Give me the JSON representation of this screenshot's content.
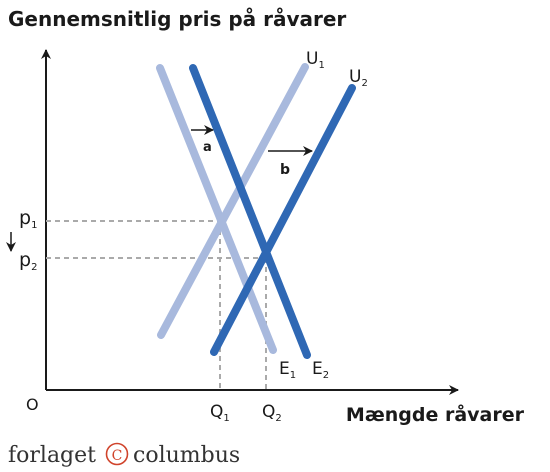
{
  "title": "Gennemsnitlig pris på råvarer",
  "xaxis_label": "Mængde råvarer",
  "origin_label": "O",
  "curves": {
    "u1": {
      "letter": "U",
      "sub": "1"
    },
    "u2": {
      "letter": "U",
      "sub": "2"
    },
    "e1": {
      "letter": "E",
      "sub": "1"
    },
    "e2": {
      "letter": "E",
      "sub": "2"
    }
  },
  "price_labels": {
    "p1": {
      "letter": "p",
      "sub": "1"
    },
    "p2": {
      "letter": "p",
      "sub": "2"
    }
  },
  "quantity_labels": {
    "q1": {
      "letter": "Q",
      "sub": "1"
    },
    "q2": {
      "letter": "Q",
      "sub": "2"
    }
  },
  "shift_labels": {
    "a": "a",
    "b": "b"
  },
  "footer": {
    "left": "forlaget",
    "mark": "C",
    "right": "columbus"
  },
  "colors": {
    "light_line": "#a8b9dd",
    "dark_line": "#2f68b4",
    "guide": "#aaaaaa",
    "axis": "#1a1a1a",
    "footer_mark": "#d0432b"
  }
}
